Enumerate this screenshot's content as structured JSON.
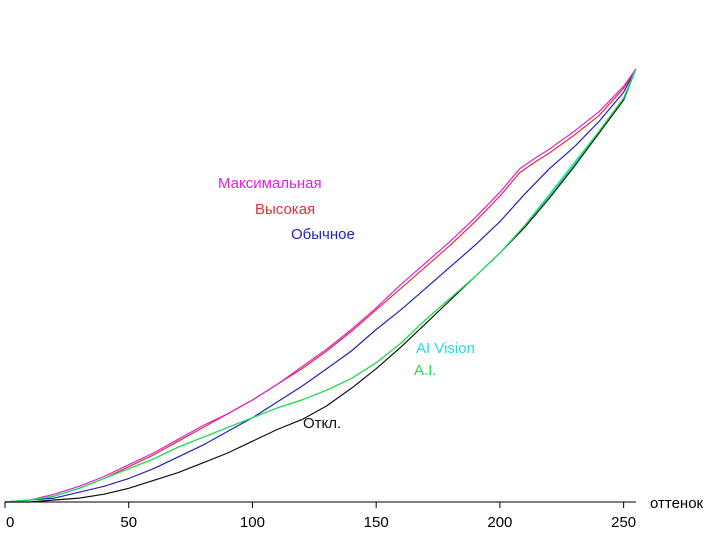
{
  "chart_data": {
    "type": "line",
    "title": "",
    "xlabel": "оттенок",
    "ylabel": "",
    "xlim": [
      0,
      255
    ],
    "ylim": [
      0,
      255
    ],
    "grid": false,
    "legend": "inline labels",
    "x_ticks": [
      0,
      50,
      100,
      150,
      200,
      250
    ],
    "series": [
      {
        "name": "Максимальная",
        "color": "#dd22dd",
        "x": [
          0,
          10,
          20,
          30,
          40,
          50,
          60,
          70,
          80,
          90,
          100,
          110,
          120,
          130,
          140,
          150,
          160,
          170,
          180,
          190,
          200,
          208,
          215,
          220,
          230,
          240,
          250,
          255
        ],
        "y": [
          0,
          1,
          4,
          8,
          13,
          19,
          25,
          32,
          39,
          45,
          52,
          60,
          69,
          78,
          88,
          99,
          111,
          122,
          133,
          145,
          158,
          170,
          176,
          180,
          189,
          199,
          212,
          221
        ]
      },
      {
        "name": "Высокая",
        "color": "#dd3333",
        "x": [
          0,
          10,
          20,
          30,
          40,
          50,
          60,
          70,
          80,
          90,
          100,
          110,
          120,
          130,
          140,
          150,
          160,
          170,
          180,
          190,
          200,
          208,
          215,
          220,
          230,
          240,
          250,
          255
        ],
        "y": [
          0,
          1,
          3,
          7,
          12,
          18,
          24,
          31,
          38,
          45,
          52,
          60,
          68,
          77,
          87,
          98,
          109,
          120,
          131,
          143,
          156,
          168,
          174,
          178,
          187,
          197,
          211,
          221
        ]
      },
      {
        "name": "Обычное",
        "color": "#2222bb",
        "x": [
          0,
          10,
          20,
          30,
          40,
          50,
          60,
          70,
          80,
          90,
          100,
          110,
          120,
          130,
          140,
          150,
          160,
          170,
          180,
          190,
          200,
          210,
          220,
          230,
          240,
          250,
          255
        ],
        "y": [
          0,
          1,
          2,
          5,
          8,
          12,
          17,
          23,
          29,
          36,
          43,
          51,
          59,
          68,
          77,
          88,
          98,
          109,
          120,
          131,
          143,
          157,
          170,
          181,
          194,
          209,
          221
        ]
      },
      {
        "name": "AI Vision",
        "color": "#22dddd",
        "x": [
          0,
          10,
          20,
          30,
          40,
          50,
          60,
          70,
          80,
          90,
          100,
          110,
          120,
          130,
          140,
          150,
          160,
          170,
          180,
          190,
          200,
          210,
          220,
          230,
          240,
          250,
          255
        ],
        "y": [
          0,
          1,
          3,
          7,
          12,
          17,
          22,
          28,
          33,
          38,
          43,
          48,
          52,
          57,
          63,
          71,
          81,
          93,
          104,
          115,
          127,
          141,
          157,
          173,
          189,
          206,
          221
        ]
      },
      {
        "name": "A.I.",
        "color": "#22dd44",
        "x": [
          0,
          10,
          20,
          30,
          40,
          50,
          60,
          70,
          80,
          90,
          100,
          110,
          120,
          130,
          140,
          150,
          160,
          170,
          180,
          190,
          200,
          210,
          220,
          230,
          240,
          250,
          255
        ],
        "y": [
          0,
          1,
          3,
          7,
          12,
          17,
          22,
          28,
          33,
          38,
          43,
          48,
          52,
          57,
          63,
          71,
          81,
          93,
          104,
          115,
          127,
          141,
          156,
          172,
          189,
          206,
          221
        ]
      },
      {
        "name": "Откл.",
        "color": "#111111",
        "x": [
          0,
          10,
          20,
          30,
          40,
          50,
          60,
          70,
          80,
          90,
          100,
          110,
          120,
          130,
          140,
          150,
          160,
          170,
          180,
          190,
          200,
          210,
          220,
          230,
          240,
          250,
          255
        ],
        "y": [
          0,
          0,
          1,
          2,
          4,
          7,
          11,
          15,
          20,
          25,
          31,
          37,
          42,
          49,
          58,
          68,
          79,
          91,
          103,
          115,
          127,
          140,
          155,
          171,
          188,
          205,
          221
        ]
      }
    ]
  }
}
